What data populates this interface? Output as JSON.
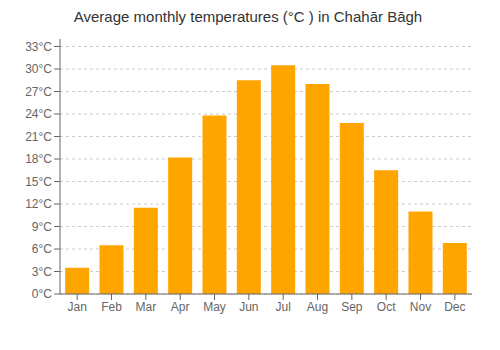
{
  "chart_data": {
    "type": "bar",
    "title": "Average monthly temperatures (°C ) in Chahār Bāgh",
    "categories": [
      "Jan",
      "Feb",
      "Mar",
      "Apr",
      "May",
      "Jun",
      "Jul",
      "Aug",
      "Sep",
      "Oct",
      "Nov",
      "Dec"
    ],
    "values": [
      3.5,
      6.5,
      11.5,
      18.2,
      23.8,
      28.5,
      30.5,
      28.0,
      22.8,
      16.5,
      11.0,
      6.8
    ],
    "color": "#FFA500",
    "ylim": [
      0,
      34
    ],
    "yticks": [
      {
        "value": 0,
        "label": "0°C"
      },
      {
        "value": 3,
        "label": "3°C"
      },
      {
        "value": 6,
        "label": "6°C"
      },
      {
        "value": 9,
        "label": "9°C"
      },
      {
        "value": 12,
        "label": "12°C"
      },
      {
        "value": 15,
        "label": "15°C"
      },
      {
        "value": 18,
        "label": "18°C"
      },
      {
        "value": 21,
        "label": "21°C"
      },
      {
        "value": 24,
        "label": "24°C"
      },
      {
        "value": 27,
        "label": "27°C"
      },
      {
        "value": 30,
        "label": "30°C"
      },
      {
        "value": 33,
        "label": "33°C"
      }
    ],
    "grid": true
  }
}
